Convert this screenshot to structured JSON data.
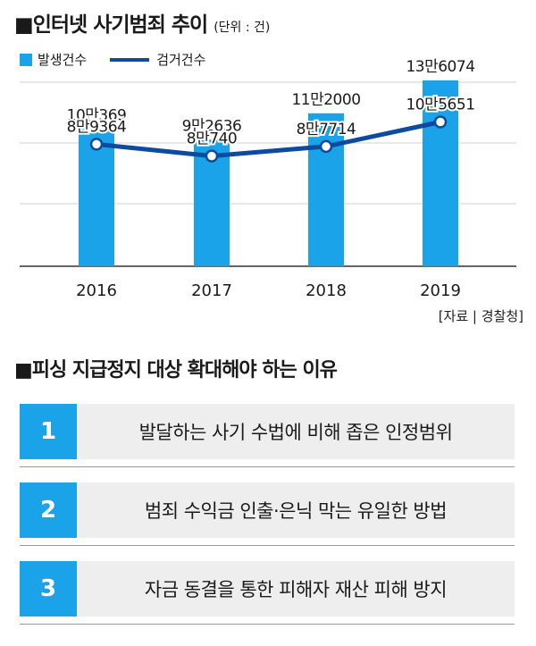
{
  "title": "■인터넷 사기범죄 추이",
  "unit": "(단위 : 건)",
  "source": "[자료 | 경찰청]",
  "chart_data": {
    "type": "bar",
    "categories": [
      "2016",
      "2017",
      "2018",
      "2019"
    ],
    "series": [
      {
        "name": "발생건수",
        "type": "bar",
        "color": "#1aa3e8",
        "values": [
          100369,
          92636,
          112000,
          136074
        ],
        "labels": [
          "10만369",
          "9만2636",
          "11만2000",
          "13만6074"
        ]
      },
      {
        "name": "검거건수",
        "type": "line",
        "color": "#0d4aa0",
        "values": [
          89364,
          80740,
          87714,
          105651
        ],
        "labels": [
          "8만9364",
          "8만740",
          "8만7714",
          "10만5651"
        ]
      }
    ],
    "ylim": [
      0,
      140000
    ],
    "grid": true,
    "legend": "top-left"
  },
  "section_title": "■피싱 지급정지 대상 확대해야 하는 이유",
  "reasons": [
    {
      "num": "1",
      "text": "발달하는 사기 수법에 비해 좁은 인정범위"
    },
    {
      "num": "2",
      "text": "범죄 수익금 인출·은닉 막는 유일한 방법"
    },
    {
      "num": "3",
      "text": "자금 동결을 통한 피해자 재산 피해 방지"
    }
  ]
}
